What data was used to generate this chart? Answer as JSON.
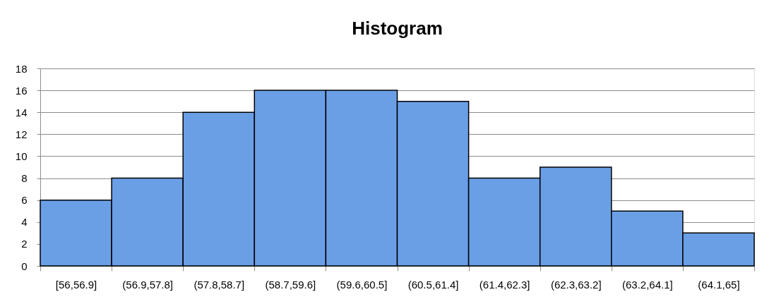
{
  "chart_data": {
    "type": "bar",
    "title": "Histogram",
    "categories": [
      "[56,56.9]",
      "(56.9,57.8]",
      "(57.8,58.7]",
      "(58.7,59.6]",
      "(59.6,60.5]",
      "(60.5,61.4]",
      "(61.4,62.3]",
      "(62.3,63.2]",
      "(63.2,64.1]",
      "(64.1,65]"
    ],
    "values": [
      6,
      8,
      14,
      16,
      16,
      15,
      8,
      9,
      5,
      3
    ],
    "color": "#6a9fe6",
    "ylim": [
      0,
      18
    ],
    "yticks": [
      0,
      2,
      4,
      6,
      8,
      10,
      12,
      14,
      16,
      18
    ],
    "grid": "y"
  }
}
